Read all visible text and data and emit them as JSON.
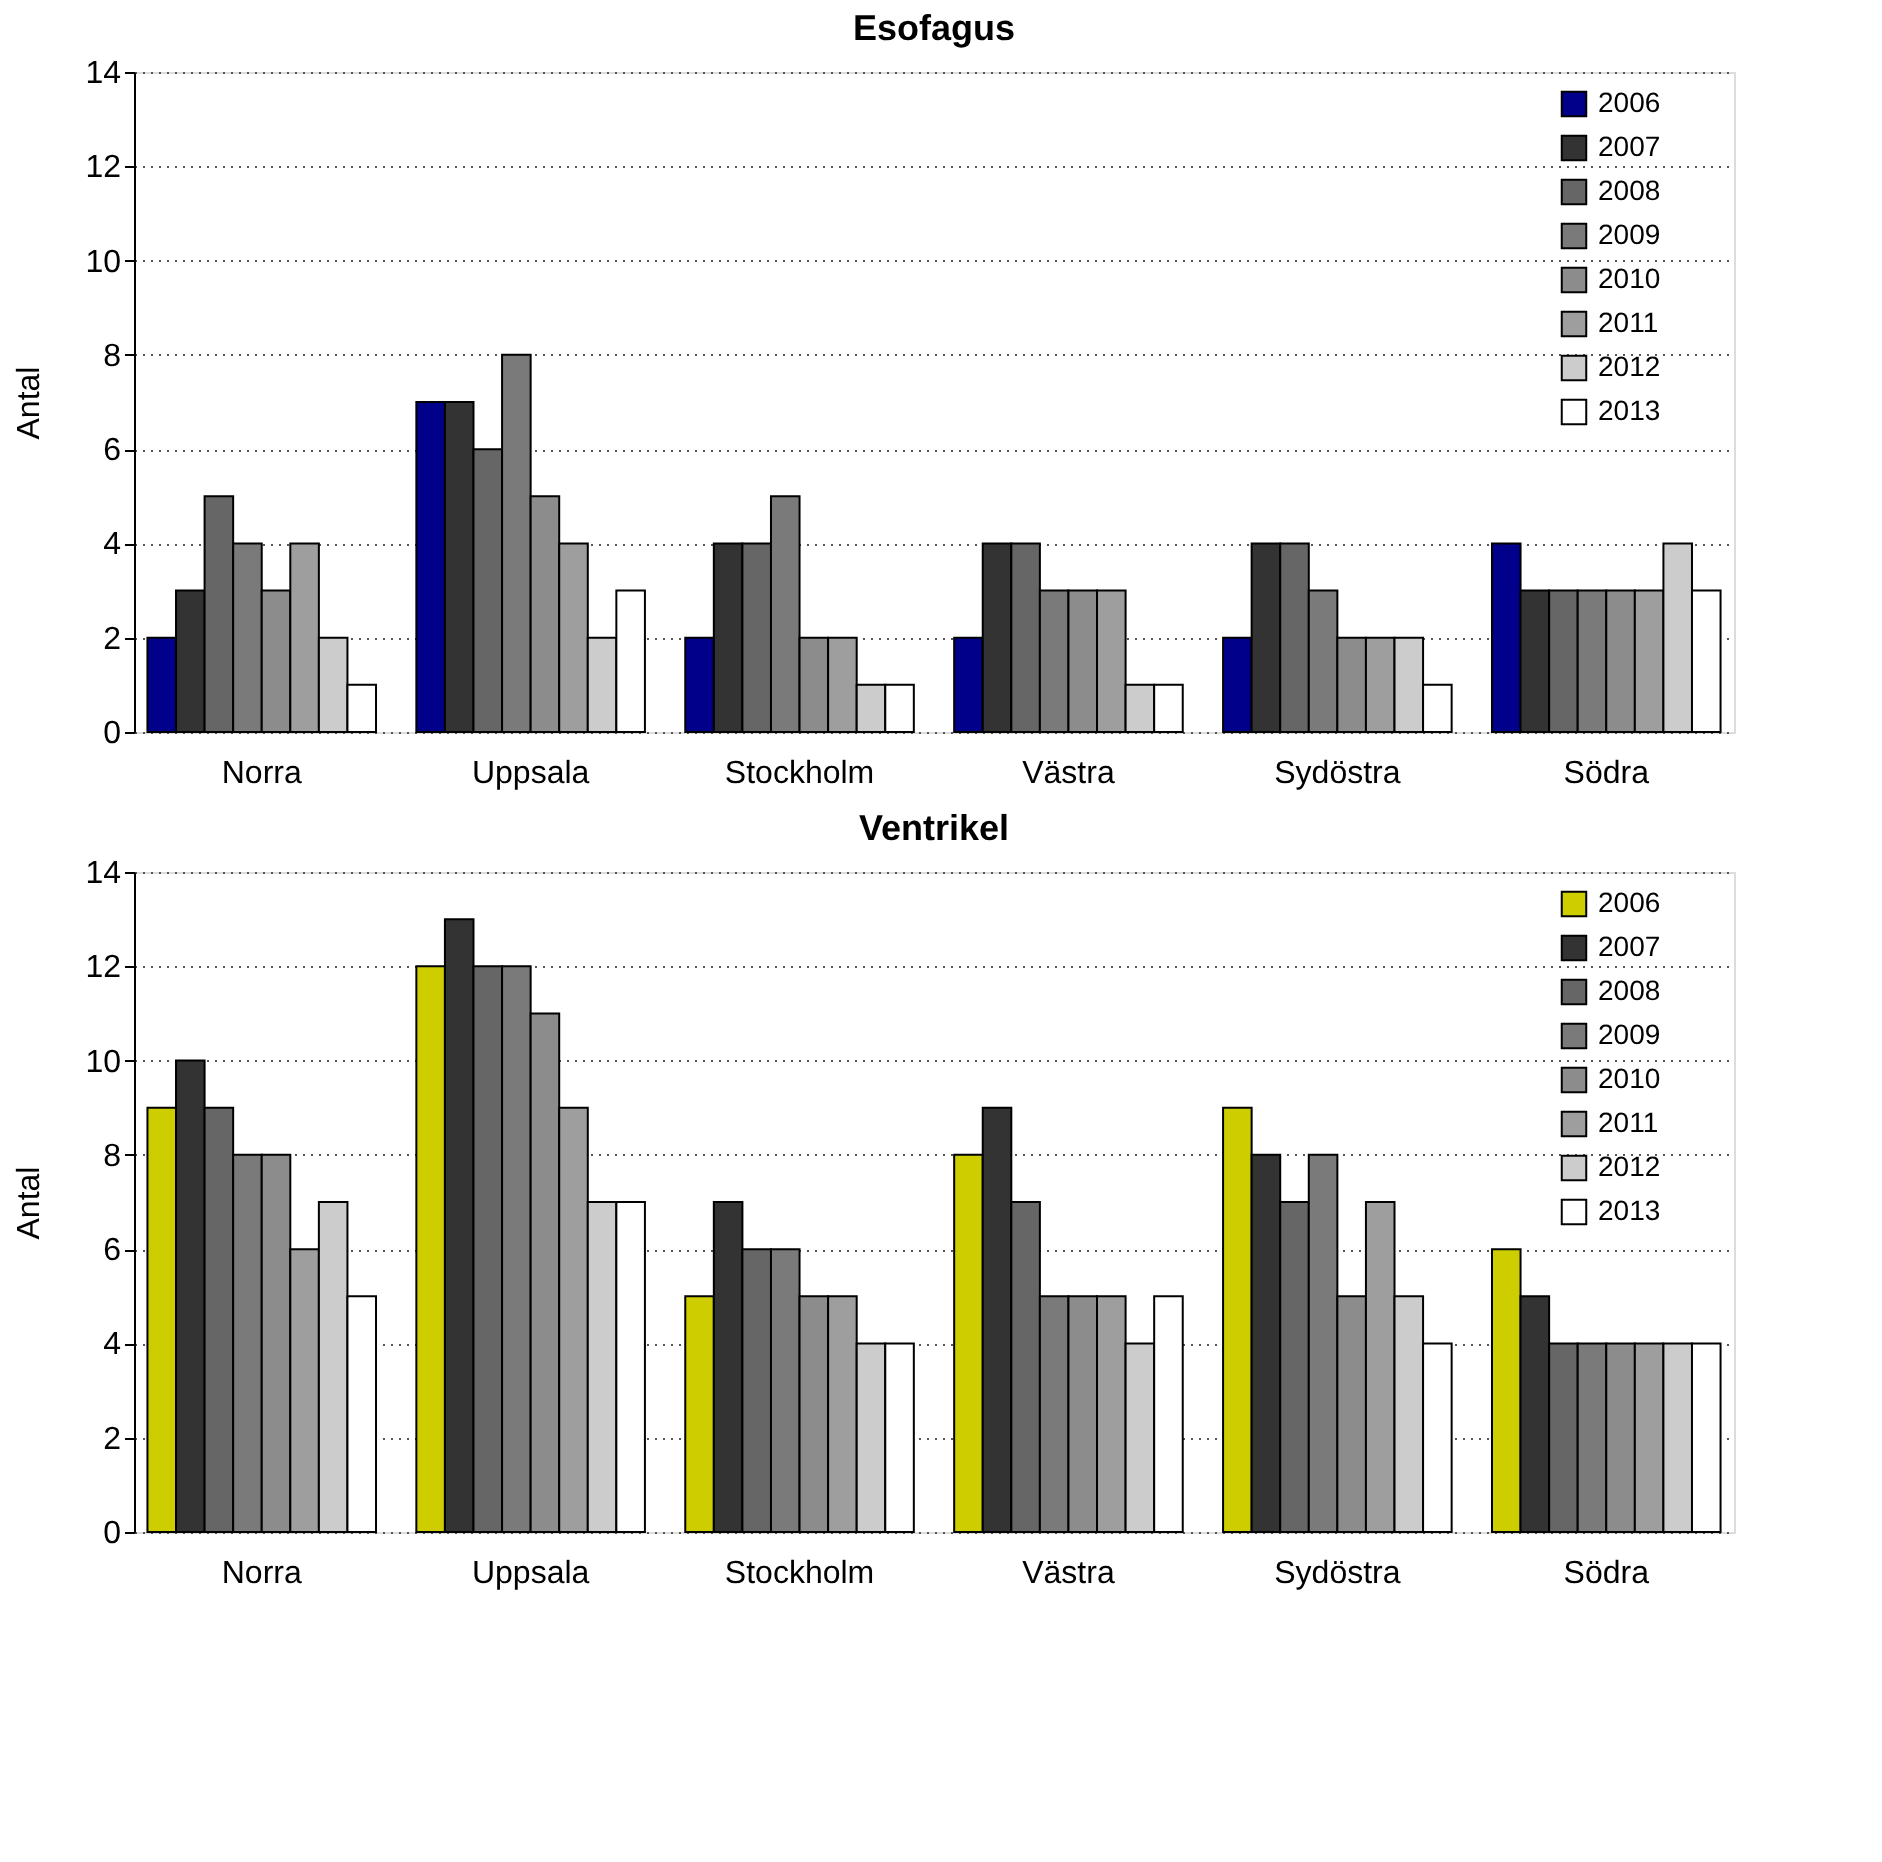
{
  "chart_data": [
    {
      "type": "bar",
      "title": "Esofagus",
      "ylabel": "Antal",
      "categories": [
        "Norra",
        "Uppsala",
        "Stockholm",
        "Västra",
        "Sydöstra",
        "Södra"
      ],
      "ylim": [
        0,
        14
      ],
      "yticks": [
        0,
        2,
        4,
        6,
        8,
        10,
        12,
        14
      ],
      "grid": "y",
      "legend": "top right",
      "series": [
        {
          "name": "2006",
          "color": "#00008b",
          "values": [
            2,
            7,
            2,
            2,
            2,
            4
          ]
        },
        {
          "name": "2007",
          "color": "#333333",
          "values": [
            3,
            7,
            4,
            4,
            4,
            3
          ]
        },
        {
          "name": "2008",
          "color": "#666666",
          "values": [
            5,
            6,
            4,
            4,
            4,
            3
          ]
        },
        {
          "name": "2009",
          "color": "#7a7a7a",
          "values": [
            4,
            8,
            5,
            3,
            3,
            3
          ]
        },
        {
          "name": "2010",
          "color": "#8c8c8c",
          "values": [
            3,
            5,
            2,
            3,
            2,
            3
          ]
        },
        {
          "name": "2011",
          "color": "#9e9e9e",
          "values": [
            4,
            4,
            2,
            3,
            2,
            3
          ]
        },
        {
          "name": "2012",
          "color": "#cccccc",
          "values": [
            2,
            2,
            1,
            1,
            2,
            4
          ]
        },
        {
          "name": "2013",
          "color": "#ffffff",
          "values": [
            1,
            3,
            1,
            1,
            1,
            3
          ]
        }
      ]
    },
    {
      "type": "bar",
      "title": "Ventrikel",
      "ylabel": "Antal",
      "categories": [
        "Norra",
        "Uppsala",
        "Stockholm",
        "Västra",
        "Sydöstra",
        "Södra"
      ],
      "ylim": [
        0,
        14
      ],
      "yticks": [
        0,
        2,
        4,
        6,
        8,
        10,
        12,
        14
      ],
      "grid": "y",
      "legend": "top right",
      "series": [
        {
          "name": "2006",
          "color": "#cdcd00",
          "values": [
            9,
            12,
            5,
            8,
            9,
            6
          ]
        },
        {
          "name": "2007",
          "color": "#333333",
          "values": [
            10,
            13,
            7,
            9,
            8,
            5
          ]
        },
        {
          "name": "2008",
          "color": "#666666",
          "values": [
            9,
            12,
            6,
            7,
            7,
            4
          ]
        },
        {
          "name": "2009",
          "color": "#7a7a7a",
          "values": [
            8,
            12,
            6,
            5,
            8,
            4
          ]
        },
        {
          "name": "2010",
          "color": "#8c8c8c",
          "values": [
            8,
            11,
            5,
            5,
            5,
            4
          ]
        },
        {
          "name": "2011",
          "color": "#9e9e9e",
          "values": [
            6,
            9,
            5,
            5,
            7,
            4
          ]
        },
        {
          "name": "2012",
          "color": "#cccccc",
          "values": [
            7,
            7,
            4,
            4,
            5,
            4
          ]
        },
        {
          "name": "2013",
          "color": "#ffffff",
          "values": [
            5,
            7,
            4,
            5,
            4,
            4
          ]
        }
      ]
    }
  ]
}
